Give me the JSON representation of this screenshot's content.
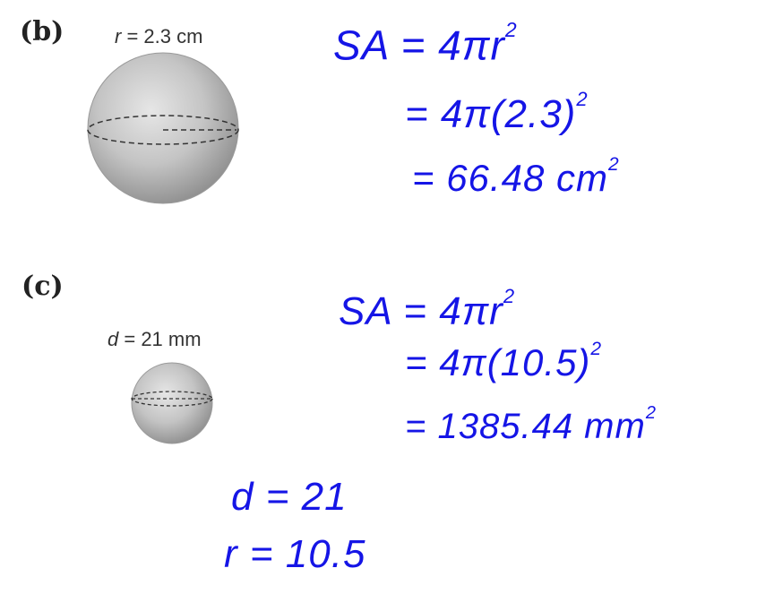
{
  "part_b": {
    "label": "(b)",
    "dim_var": "r",
    "dim_value": " = 2.3 cm",
    "work": {
      "line1": {
        "lhs": "SA",
        "rhs": "= 4πr",
        "exp": "2"
      },
      "line2": {
        "text": "= 4π(2.3)",
        "exp": "2"
      },
      "line3": {
        "text": "= 66.48 cm",
        "exp": "2"
      }
    }
  },
  "part_c": {
    "label": "(c)",
    "dim_var": "d",
    "dim_value": " = 21 mm",
    "work": {
      "line1": {
        "lhs": "SA",
        "rhs": "= 4πr",
        "exp": "2"
      },
      "line2": {
        "text": "= 4π(10.5)",
        "exp": "2"
      },
      "line3": {
        "text": "= 1385.44 mm",
        "exp": "2"
      }
    },
    "side_work": {
      "line1": "d = 21",
      "line2": "r = 10.5"
    }
  },
  "colors": {
    "ink": "#1515e6",
    "print": "#222222"
  }
}
